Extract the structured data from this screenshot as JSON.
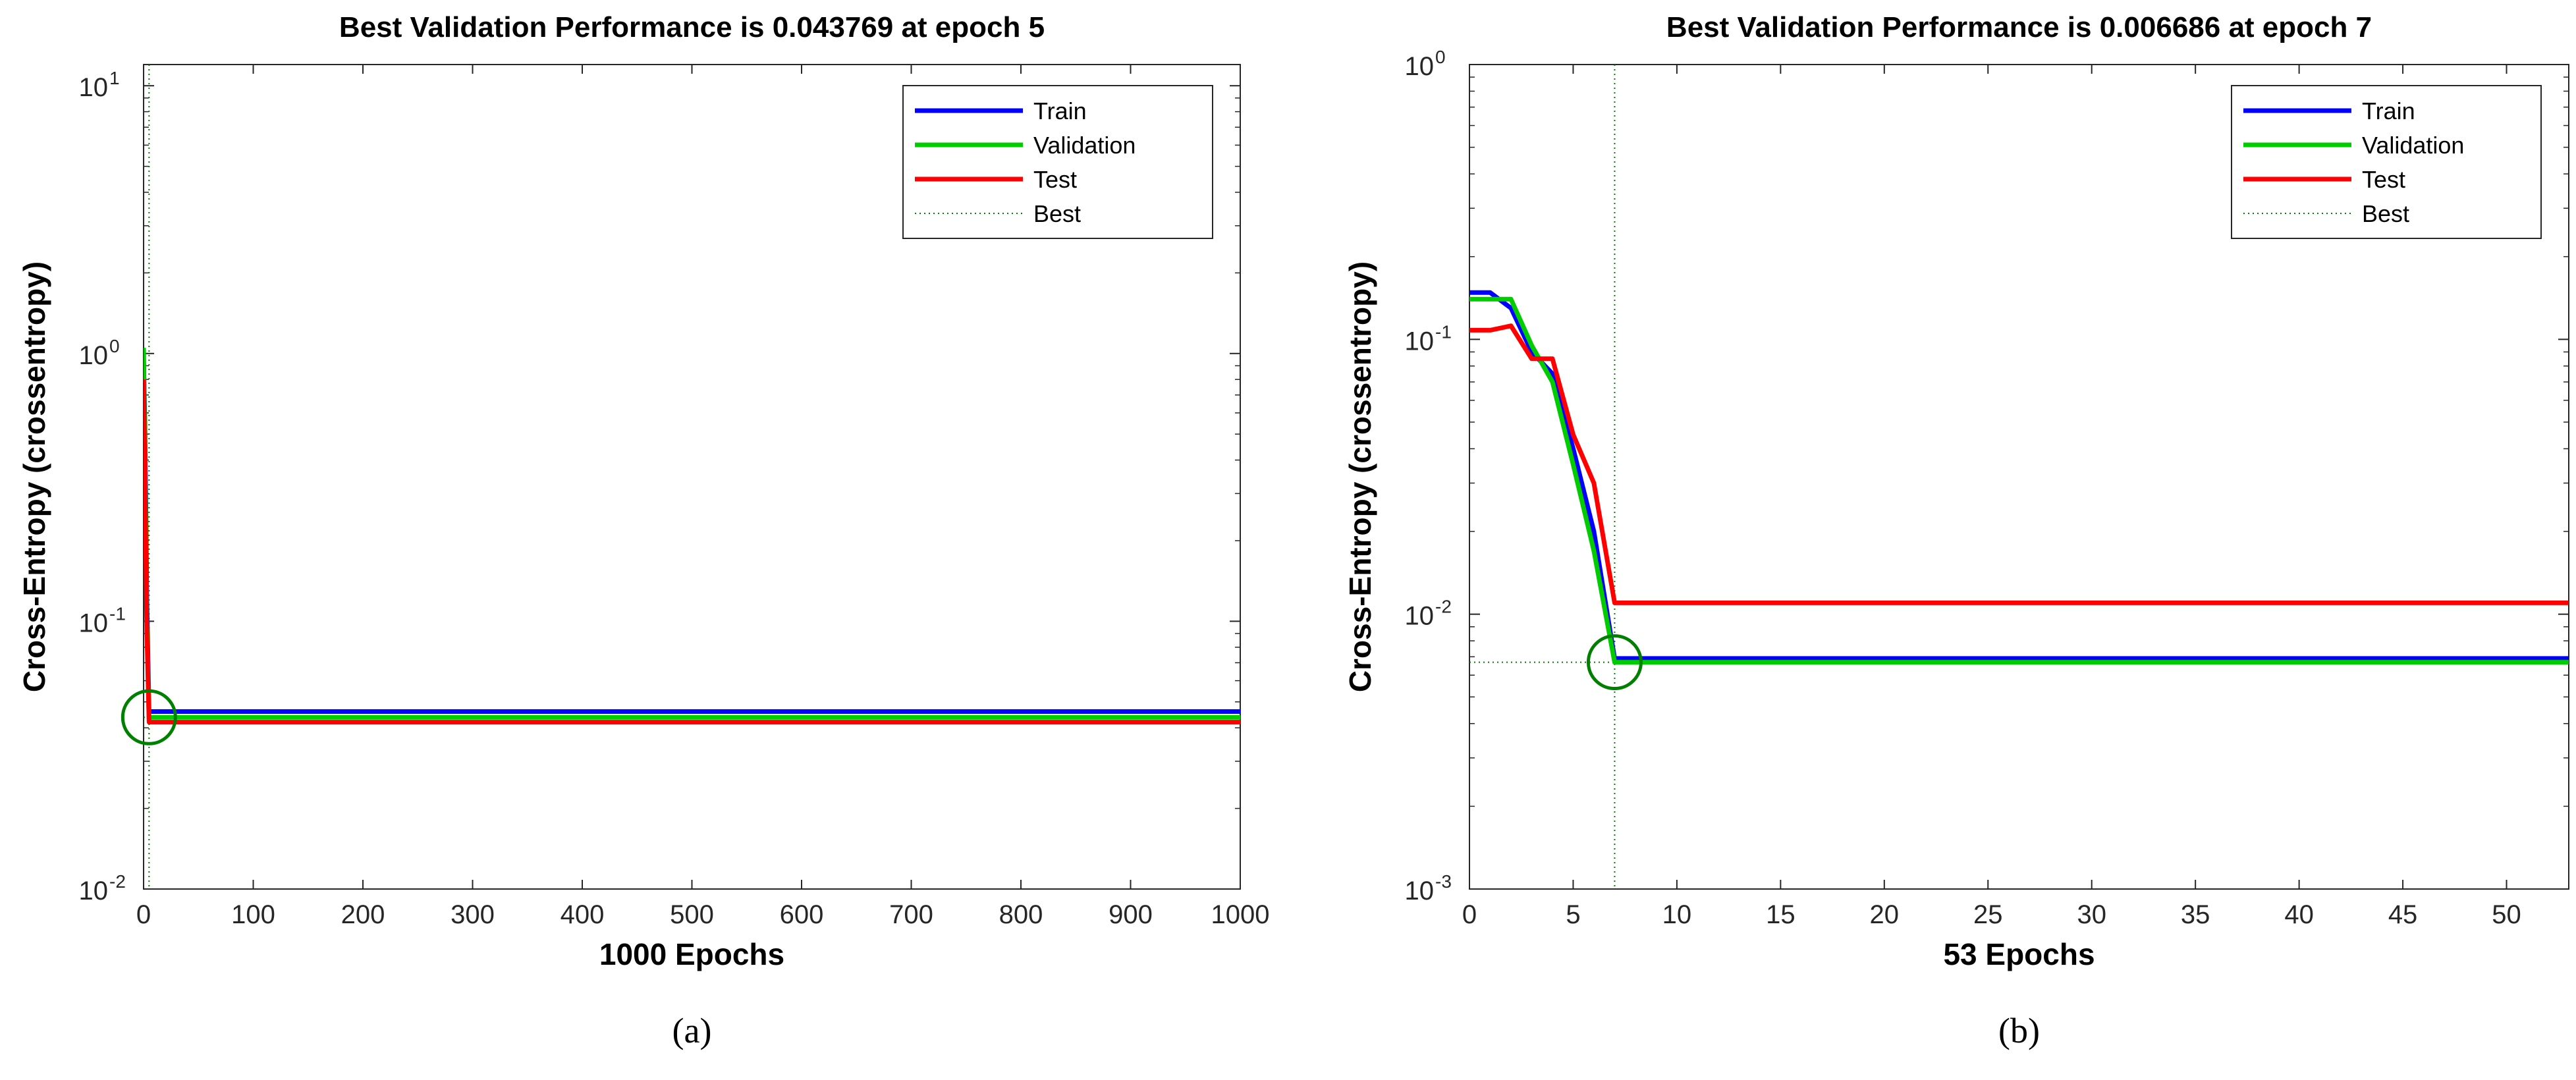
{
  "chart_data": [
    {
      "type": "line",
      "title": "Best Validation Performance is 0.043769 at epoch 5",
      "xlabel": "1000 Epochs",
      "ylabel": "Cross-Entropy  (crossentropy)",
      "caption": "(a)",
      "xlim": [
        0,
        1000
      ],
      "ylim": [
        0.01,
        12
      ],
      "yscale": "log",
      "xticks": [
        0,
        100,
        200,
        300,
        400,
        500,
        600,
        700,
        800,
        900,
        1000
      ],
      "yticks": [
        {
          "value": 0.01,
          "base": "10",
          "exp": "-2"
        },
        {
          "value": 0.1,
          "base": "10",
          "exp": "-1"
        },
        {
          "value": 1,
          "base": "10",
          "exp": "0"
        },
        {
          "value": 10,
          "base": "10",
          "exp": "1"
        }
      ],
      "series": [
        {
          "name": "Train",
          "color": "#0000ff",
          "x": [
            0,
            1,
            2,
            3,
            5,
            1000
          ],
          "y": [
            0.95,
            0.6,
            0.3,
            0.12,
            0.046,
            0.046
          ]
        },
        {
          "name": "Validation",
          "color": "#00cc00",
          "x": [
            0,
            1,
            2,
            3,
            5,
            1000
          ],
          "y": [
            1.05,
            0.5,
            0.25,
            0.1,
            0.043769,
            0.043769
          ]
        },
        {
          "name": "Test",
          "color": "#ff0000",
          "x": [
            0,
            1,
            2,
            3,
            5,
            1000
          ],
          "y": [
            0.8,
            0.4,
            0.2,
            0.09,
            0.042,
            0.042
          ]
        }
      ],
      "best": {
        "name": "Best",
        "epoch": 5,
        "value": 0.043769,
        "color": "#008000"
      },
      "legend": [
        "Train",
        "Validation",
        "Test",
        "Best"
      ],
      "legend_position": "top-right"
    },
    {
      "type": "line",
      "title": "Best Validation Performance is 0.006686 at epoch 7",
      "xlabel": "53 Epochs",
      "ylabel": "Cross-Entropy  (crossentropy)",
      "caption": "(b)",
      "xlim": [
        0,
        53
      ],
      "ylim": [
        0.001,
        1
      ],
      "yscale": "log",
      "xticks": [
        0,
        5,
        10,
        15,
        20,
        25,
        30,
        35,
        40,
        45,
        50
      ],
      "yticks": [
        {
          "value": 0.001,
          "base": "10",
          "exp": "-3"
        },
        {
          "value": 0.01,
          "base": "10",
          "exp": "-2"
        },
        {
          "value": 0.1,
          "base": "10",
          "exp": "-1"
        },
        {
          "value": 1,
          "base": "10",
          "exp": "0"
        }
      ],
      "series": [
        {
          "name": "Train",
          "color": "#0000ff",
          "x": [
            0,
            1,
            2,
            3,
            4,
            5,
            6,
            7,
            53
          ],
          "y": [
            0.148,
            0.148,
            0.13,
            0.09,
            0.075,
            0.04,
            0.02,
            0.0069,
            0.0069
          ]
        },
        {
          "name": "Validation",
          "color": "#00cc00",
          "x": [
            0,
            1,
            2,
            3,
            4,
            5,
            6,
            7,
            53
          ],
          "y": [
            0.14,
            0.14,
            0.14,
            0.095,
            0.07,
            0.035,
            0.017,
            0.006686,
            0.006686
          ]
        },
        {
          "name": "Test",
          "color": "#ff0000",
          "x": [
            0,
            1,
            2,
            3,
            4,
            5,
            6,
            7,
            53
          ],
          "y": [
            0.108,
            0.108,
            0.112,
            0.085,
            0.085,
            0.045,
            0.03,
            0.011,
            0.011
          ]
        }
      ],
      "best": {
        "name": "Best",
        "epoch": 7,
        "value": 0.006686,
        "color": "#008000"
      },
      "legend": [
        "Train",
        "Validation",
        "Test",
        "Best"
      ],
      "legend_position": "top-right"
    }
  ]
}
